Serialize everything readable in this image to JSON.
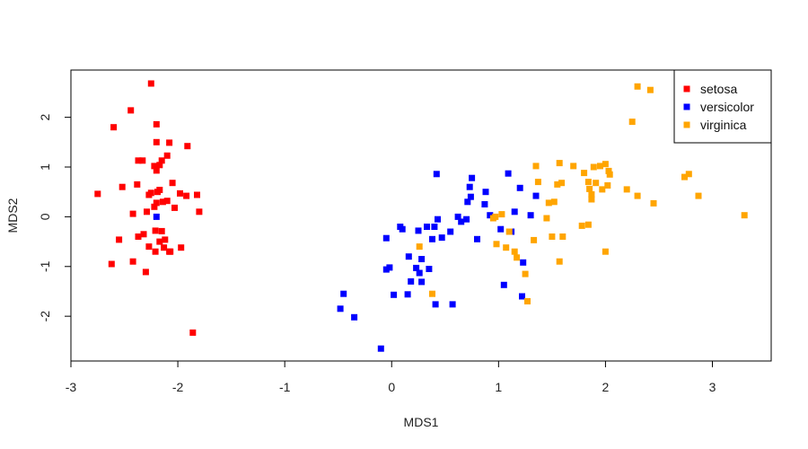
{
  "chart_data": {
    "type": "scatter",
    "title": "",
    "xlabel": "MDS1",
    "ylabel": "MDS2",
    "xlim": [
      -3.0,
      3.55
    ],
    "ylim": [
      -2.9,
      2.95
    ],
    "xticks": [
      -3,
      -2,
      -1,
      0,
      1,
      2,
      3
    ],
    "yticks": [
      -2,
      -1,
      0,
      1,
      2
    ],
    "grid": false,
    "legend_position": "top-right",
    "series": [
      {
        "name": "setosa",
        "color": "#ff0000",
        "points": [
          [
            -2.75,
            0.46
          ],
          [
            -2.62,
            -0.95
          ],
          [
            -2.6,
            1.8
          ],
          [
            -2.55,
            -0.46
          ],
          [
            -2.52,
            0.6
          ],
          [
            -2.44,
            2.14
          ],
          [
            -2.42,
            0.06
          ],
          [
            -2.42,
            -0.9
          ],
          [
            -2.38,
            0.65
          ],
          [
            -2.37,
            1.13
          ],
          [
            -2.37,
            -0.4
          ],
          [
            -2.33,
            1.13
          ],
          [
            -2.32,
            -0.35
          ],
          [
            -2.3,
            -1.11
          ],
          [
            -2.29,
            0.1
          ],
          [
            -2.27,
            0.44
          ],
          [
            -2.27,
            -0.6
          ],
          [
            -2.25,
            2.68
          ],
          [
            -2.25,
            0.48
          ],
          [
            -2.22,
            1.02
          ],
          [
            -2.22,
            0.2
          ],
          [
            -2.21,
            -0.7
          ],
          [
            -2.21,
            -0.28
          ],
          [
            -2.2,
            0.93
          ],
          [
            -2.2,
            1.86
          ],
          [
            -2.2,
            1.5
          ],
          [
            -2.2,
            0.28
          ],
          [
            -2.19,
            0.5
          ],
          [
            -2.17,
            1.04
          ],
          [
            -2.17,
            0.54
          ],
          [
            -2.17,
            -0.5
          ],
          [
            -2.15,
            1.13
          ],
          [
            -2.15,
            -0.29
          ],
          [
            -2.14,
            0.3
          ],
          [
            -2.13,
            -0.62
          ],
          [
            -2.12,
            -0.46
          ],
          [
            -2.1,
            1.23
          ],
          [
            -2.1,
            0.32
          ],
          [
            -2.08,
            1.49
          ],
          [
            -2.08,
            -0.7
          ],
          [
            -2.07,
            -0.7
          ],
          [
            -2.05,
            0.68
          ],
          [
            -2.03,
            0.18
          ],
          [
            -1.98,
            0.47
          ],
          [
            -1.97,
            -0.62
          ],
          [
            -1.92,
            0.42
          ],
          [
            -1.91,
            1.42
          ],
          [
            -1.86,
            -2.33
          ],
          [
            -1.82,
            0.44
          ],
          [
            -1.8,
            0.1
          ]
        ]
      },
      {
        "name": "versicolor",
        "color": "#0000ff",
        "points": [
          [
            -2.2,
            0.0
          ],
          [
            -0.48,
            -1.85
          ],
          [
            -0.45,
            -1.55
          ],
          [
            -0.35,
            -2.02
          ],
          [
            -0.1,
            -2.65
          ],
          [
            -0.05,
            -0.43
          ],
          [
            -0.05,
            -1.06
          ],
          [
            -0.02,
            -1.02
          ],
          [
            0.02,
            -1.57
          ],
          [
            0.08,
            -0.2
          ],
          [
            0.1,
            -0.25
          ],
          [
            0.15,
            -1.56
          ],
          [
            0.16,
            -0.8
          ],
          [
            0.18,
            -1.3
          ],
          [
            0.23,
            -1.03
          ],
          [
            0.25,
            -0.28
          ],
          [
            0.26,
            -1.13
          ],
          [
            0.28,
            -1.31
          ],
          [
            0.28,
            -0.85
          ],
          [
            0.33,
            -0.2
          ],
          [
            0.35,
            -1.05
          ],
          [
            0.38,
            -0.45
          ],
          [
            0.4,
            -0.2
          ],
          [
            0.41,
            -1.76
          ],
          [
            0.42,
            0.86
          ],
          [
            0.43,
            -0.05
          ],
          [
            0.47,
            -0.42
          ],
          [
            0.55,
            -0.3
          ],
          [
            0.57,
            -1.76
          ],
          [
            0.62,
            0.0
          ],
          [
            0.65,
            -0.1
          ],
          [
            0.7,
            -0.05
          ],
          [
            0.71,
            0.3
          ],
          [
            0.73,
            0.6
          ],
          [
            0.74,
            0.4
          ],
          [
            0.75,
            0.78
          ],
          [
            0.8,
            -0.45
          ],
          [
            0.87,
            0.25
          ],
          [
            0.88,
            0.5
          ],
          [
            0.92,
            0.03
          ],
          [
            1.02,
            -0.25
          ],
          [
            1.05,
            -1.37
          ],
          [
            1.09,
            0.87
          ],
          [
            1.12,
            -0.3
          ],
          [
            1.15,
            0.1
          ],
          [
            1.2,
            0.58
          ],
          [
            1.22,
            -1.6
          ],
          [
            1.23,
            -0.92
          ],
          [
            1.3,
            0.03
          ],
          [
            1.35,
            0.42
          ]
        ]
      },
      {
        "name": "virginica",
        "color": "#ffa500",
        "points": [
          [
            0.26,
            -0.6
          ],
          [
            0.38,
            -1.55
          ],
          [
            0.95,
            -0.03
          ],
          [
            0.97,
            0.0
          ],
          [
            0.98,
            -0.55
          ],
          [
            1.03,
            0.05
          ],
          [
            1.07,
            -0.62
          ],
          [
            1.1,
            -0.3
          ],
          [
            1.15,
            -0.7
          ],
          [
            1.17,
            -0.82
          ],
          [
            1.25,
            -1.15
          ],
          [
            1.27,
            -1.7
          ],
          [
            1.33,
            -0.47
          ],
          [
            1.35,
            1.02
          ],
          [
            1.37,
            0.7
          ],
          [
            1.45,
            -0.03
          ],
          [
            1.47,
            0.28
          ],
          [
            1.5,
            -0.4
          ],
          [
            1.52,
            0.3
          ],
          [
            1.55,
            0.65
          ],
          [
            1.57,
            1.08
          ],
          [
            1.57,
            -0.9
          ],
          [
            1.59,
            0.68
          ],
          [
            1.6,
            -0.4
          ],
          [
            1.7,
            1.02
          ],
          [
            1.78,
            -0.18
          ],
          [
            1.8,
            0.88
          ],
          [
            1.84,
            -0.16
          ],
          [
            1.84,
            0.7
          ],
          [
            1.85,
            0.56
          ],
          [
            1.87,
            0.45
          ],
          [
            1.87,
            0.35
          ],
          [
            1.89,
            1.0
          ],
          [
            1.91,
            0.68
          ],
          [
            1.95,
            1.02
          ],
          [
            1.97,
            0.55
          ],
          [
            2.0,
            1.06
          ],
          [
            2.0,
            -0.7
          ],
          [
            2.02,
            0.63
          ],
          [
            2.03,
            0.92
          ],
          [
            2.04,
            0.85
          ],
          [
            2.2,
            0.55
          ],
          [
            2.25,
            1.91
          ],
          [
            2.3,
            2.62
          ],
          [
            2.3,
            0.42
          ],
          [
            2.42,
            2.55
          ],
          [
            2.45,
            0.27
          ],
          [
            2.74,
            0.8
          ],
          [
            2.78,
            0.86
          ],
          [
            2.87,
            0.42
          ],
          [
            3.3,
            0.03
          ]
        ]
      }
    ]
  }
}
